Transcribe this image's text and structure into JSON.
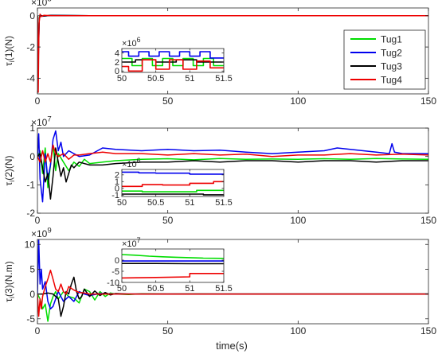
{
  "chart_data": [
    {
      "type": "line",
      "ylabel": "τi(1)(N)",
      "exponent_label": "×10",
      "exponent": "8",
      "xlim": [
        0,
        150
      ],
      "ylim": [
        -5,
        0.5
      ],
      "xticks": [
        "0",
        "50",
        "100",
        "150"
      ],
      "yticks": [
        {
          "v": 0,
          "label": "0"
        },
        {
          "v": -2,
          "label": "-2"
        },
        {
          "v": -4,
          "label": "-4"
        }
      ],
      "xlabel": "",
      "series": [
        {
          "name": "Tug1",
          "color": "#00dd00",
          "x": [
            0,
            0.3,
            0.7,
            1.2,
            2,
            5,
            20,
            150
          ],
          "y": [
            0,
            -2.2,
            -0.1,
            0.03,
            -0.02,
            0.02,
            0,
            0
          ]
        },
        {
          "name": "Tug2",
          "color": "#0000ee",
          "x": [
            0,
            0.3,
            0.7,
            1.2,
            2,
            5,
            20,
            150
          ],
          "y": [
            0,
            -3.1,
            -0.2,
            0.04,
            -0.03,
            0.02,
            0,
            0
          ]
        },
        {
          "name": "Tug3",
          "color": "#000000",
          "x": [
            0,
            0.3,
            0.7,
            1.2,
            2,
            5,
            20,
            150
          ],
          "y": [
            0,
            -2.8,
            -0.15,
            0.03,
            -0.02,
            0.02,
            0,
            0
          ]
        },
        {
          "name": "Tug4",
          "color": "#ee0000",
          "x": [
            0,
            0.3,
            0.6,
            1.0,
            1.5,
            2.5,
            5,
            20,
            150
          ],
          "y": [
            0,
            -4.9,
            -0.5,
            0.1,
            -0.05,
            0.03,
            0.01,
            0,
            0
          ]
        }
      ],
      "inset": {
        "exponent_label": "×10",
        "exponent": "6",
        "xlim": [
          50,
          51.5
        ],
        "ylim": [
          -0.3,
          5
        ],
        "xticks": [
          "50",
          "50.5",
          "51",
          "51.5"
        ],
        "yticks": [
          {
            "v": 4,
            "label": "4"
          },
          {
            "v": 2,
            "label": "2"
          },
          {
            "v": 0,
            "label": "0"
          }
        ],
        "series": [
          {
            "color": "#00dd00",
            "x": [
              50,
              50.15,
              50.15,
              50.3,
              50.3,
              50.45,
              50.45,
              50.6,
              50.6,
              50.75,
              50.75,
              50.9,
              50.9,
              51.05,
              51.05,
              51.2,
              51.2,
              51.35,
              51.35,
              51.5
            ],
            "y": [
              2.8,
              2.8,
              1.2,
              1.2,
              2.8,
              2.8,
              1.2,
              1.2,
              2.8,
              2.8,
              1.2,
              1.2,
              2.8,
              2.8,
              1.2,
              1.2,
              2.8,
              2.8,
              1.2,
              1.2
            ]
          },
          {
            "color": "#0000ee",
            "x": [
              50,
              50.1,
              50.1,
              50.25,
              50.25,
              50.4,
              50.4,
              50.55,
              50.55,
              50.7,
              50.7,
              50.85,
              50.85,
              51.0,
              51.0,
              51.15,
              51.15,
              51.3,
              51.3,
              51.5
            ],
            "y": [
              4.3,
              4.3,
              3.3,
              3.3,
              4.3,
              4.3,
              3.3,
              3.3,
              4.3,
              4.3,
              3.3,
              3.3,
              4.3,
              4.3,
              3.3,
              3.3,
              4.3,
              4.3,
              2.9,
              2.9
            ]
          },
          {
            "color": "#000000",
            "x": [
              50,
              50.2,
              50.2,
              50.5,
              50.5,
              50.8,
              50.8,
              51.1,
              51.1,
              51.5
            ],
            "y": [
              2.0,
              2.0,
              2.5,
              2.5,
              2.0,
              2.0,
              2.5,
              2.5,
              2.0,
              2.0
            ]
          },
          {
            "color": "#ee0000",
            "x": [
              50,
              50.1,
              50.1,
              50.3,
              50.3,
              50.5,
              50.5,
              50.7,
              50.7,
              50.9,
              50.9,
              51.1,
              51.1,
              51.3,
              51.3,
              51.5
            ],
            "y": [
              1.0,
              1.0,
              0.0,
              0.0,
              2.5,
              2.5,
              0.4,
              0.4,
              2.5,
              2.5,
              0.4,
              0.4,
              2.2,
              2.2,
              0.7,
              0.7
            ]
          }
        ]
      }
    },
    {
      "type": "line",
      "ylabel": "τi(2)(N)",
      "exponent_label": "×10",
      "exponent": "7",
      "xlim": [
        0,
        150
      ],
      "ylim": [
        -2,
        1
      ],
      "xticks": [
        "0",
        "50",
        "100",
        "150"
      ],
      "yticks": [
        {
          "v": 1,
          "label": "1"
        },
        {
          "v": 0,
          "label": "0"
        },
        {
          "v": -1,
          "label": "-1"
        },
        {
          "v": -2,
          "label": "-2"
        }
      ],
      "xlabel": "",
      "series": [
        {
          "name": "Tug1",
          "color": "#00dd00",
          "x": [
            0,
            1,
            2,
            3,
            4,
            5,
            6,
            7,
            8,
            10,
            12,
            14,
            16,
            18,
            20,
            25,
            30,
            40,
            50,
            60,
            70,
            80,
            90,
            100,
            110,
            120,
            130,
            140,
            150
          ],
          "y": [
            0,
            0.2,
            -0.6,
            0.3,
            -1.1,
            -0.3,
            0.4,
            -0.5,
            0.1,
            -0.2,
            -0.5,
            -0.2,
            -0.35,
            -0.1,
            -0.25,
            -0.2,
            -0.15,
            -0.1,
            -0.08,
            -0.12,
            -0.07,
            -0.1,
            -0.09,
            -0.1,
            -0.08,
            -0.1,
            -0.07,
            -0.09,
            -0.1
          ]
        },
        {
          "name": "Tug2",
          "color": "#0000ee",
          "x": [
            0,
            0.5,
            1,
            2,
            3,
            4,
            5,
            6,
            7,
            8,
            9,
            10,
            12,
            14,
            16,
            20,
            25,
            30,
            40,
            50,
            60,
            70,
            80,
            90,
            100,
            110,
            115,
            120,
            130,
            135,
            136,
            137,
            140,
            150
          ],
          "y": [
            0,
            0.8,
            -0.8,
            -1.6,
            0.1,
            -0.8,
            -0.3,
            0.6,
            0.9,
            0.2,
            0.5,
            0.0,
            0.2,
            0.1,
            0.0,
            0.05,
            0.3,
            0.25,
            0.2,
            0.25,
            0.2,
            0.22,
            0.15,
            0.1,
            0.15,
            0.2,
            0.3,
            0.25,
            0.15,
            0.1,
            0.45,
            0.15,
            0.1,
            0.1
          ]
        },
        {
          "name": "Tug3",
          "color": "#000000",
          "x": [
            0,
            1,
            2,
            3,
            4,
            5,
            6,
            7,
            8,
            9,
            10,
            11,
            12,
            13,
            14,
            16,
            20,
            25,
            30,
            40,
            50,
            60,
            70,
            80,
            90,
            100,
            110,
            120,
            130,
            140,
            150
          ],
          "y": [
            0,
            0.1,
            -0.4,
            -0.9,
            -0.6,
            -1.5,
            -0.7,
            0.3,
            -0.2,
            -0.7,
            -0.4,
            -0.9,
            -0.6,
            -0.3,
            -0.4,
            -0.2,
            -0.3,
            -0.3,
            -0.25,
            -0.2,
            -0.2,
            -0.15,
            -0.2,
            -0.15,
            -0.15,
            -0.2,
            -0.15,
            -0.15,
            -0.2,
            -0.15,
            -0.15
          ]
        },
        {
          "name": "Tug4",
          "color": "#ee0000",
          "x": [
            0,
            1,
            2,
            3,
            4,
            5,
            6,
            7,
            8,
            10,
            12,
            14,
            16,
            20,
            25,
            30,
            40,
            50,
            60,
            70,
            80,
            90,
            100,
            110,
            120,
            130,
            140,
            150
          ],
          "y": [
            0,
            -0.2,
            0.2,
            -0.2,
            0.1,
            -0.2,
            0.4,
            0.1,
            0.0,
            0.1,
            -0.1,
            0.05,
            0.05,
            0.1,
            0.15,
            0.1,
            0.1,
            0.05,
            0.1,
            0.05,
            0.08,
            0.0,
            0.05,
            0.05,
            0.1,
            0.05,
            0.08,
            0.05
          ]
        }
      ],
      "inset": {
        "exponent_label": "×10",
        "exponent": "6",
        "xlim": [
          50,
          51.5
        ],
        "ylim": [
          -1.2,
          2.8
        ],
        "xticks": [
          "50",
          "50.5",
          "51",
          "51.5"
        ],
        "yticks": [
          {
            "v": 2,
            "label": "2"
          },
          {
            "v": 1,
            "label": "1"
          },
          {
            "v": 0,
            "label": "0"
          },
          {
            "v": -1,
            "label": "-1"
          }
        ],
        "series": [
          {
            "color": "#0000ee",
            "x": [
              50,
              50.25,
              50.25,
              50.5,
              50.5,
              51.0,
              51.0,
              51.5
            ],
            "y": [
              2.4,
              2.4,
              2.3,
              2.3,
              2.25,
              2.25,
              2.1,
              2.1
            ]
          },
          {
            "color": "#ee0000",
            "x": [
              50,
              50.3,
              50.3,
              50.6,
              50.6,
              51.0,
              51.0,
              51.35,
              51.35,
              51.5
            ],
            "y": [
              0.3,
              0.3,
              0.55,
              0.55,
              0.5,
              0.5,
              0.75,
              0.75,
              1.0,
              1.0
            ]
          },
          {
            "color": "#00dd00",
            "x": [
              50,
              50.3,
              50.3,
              51.1,
              51.1,
              51.5
            ],
            "y": [
              -0.4,
              -0.4,
              -0.5,
              -0.5,
              -0.3,
              -0.3
            ]
          },
          {
            "color": "#000000",
            "x": [
              50,
              51.2,
              51.2,
              51.5
            ],
            "y": [
              -0.85,
              -0.85,
              -0.95,
              -0.95
            ]
          }
        ]
      }
    },
    {
      "type": "line",
      "ylabel": "τi(3)(N.m)",
      "exponent_label": "×10",
      "exponent": "9",
      "xlim": [
        0,
        150
      ],
      "ylim": [
        -6,
        11
      ],
      "xticks": [
        "0",
        "50",
        "100",
        "150"
      ],
      "yticks": [
        {
          "v": 10,
          "label": "10"
        },
        {
          "v": 5,
          "label": "5"
        },
        {
          "v": 0,
          "label": "0"
        },
        {
          "v": -5,
          "label": "-5"
        }
      ],
      "xlabel": "time(s)",
      "series": [
        {
          "name": "Tug1",
          "color": "#00dd00",
          "x": [
            0,
            1,
            2,
            3,
            4,
            5,
            6,
            7,
            8,
            10,
            12,
            14,
            16,
            18,
            20,
            22,
            24,
            26,
            28,
            30,
            35,
            40,
            50,
            60,
            70,
            150
          ],
          "y": [
            0,
            -1,
            -3,
            -2,
            -5.5,
            -2,
            -0.5,
            0.5,
            -1,
            0.5,
            -0.5,
            -0.8,
            -1.8,
            1,
            0.5,
            -1.2,
            0.5,
            -0.5,
            0.2,
            0,
            -0.1,
            0.05,
            0,
            0.02,
            0,
            0
          ]
        },
        {
          "name": "Tug2",
          "color": "#0000ee",
          "x": [
            0,
            0.5,
            1,
            1.5,
            2,
            3,
            4,
            5,
            6,
            7,
            8,
            10,
            12,
            14,
            16,
            18,
            20,
            24,
            30,
            40,
            150
          ],
          "y": [
            0,
            11,
            2,
            5,
            1,
            2.5,
            -1.5,
            -3,
            -2.5,
            -1,
            0.5,
            -1.5,
            -0.5,
            -1.5,
            0.5,
            0,
            -0.3,
            0.1,
            0,
            0,
            0
          ]
        },
        {
          "name": "Tug3",
          "color": "#000000",
          "x": [
            0,
            2,
            4,
            6,
            8,
            9,
            10,
            11,
            12,
            13,
            14,
            15,
            16,
            17,
            18,
            20,
            22,
            24,
            26,
            28,
            30,
            35,
            40,
            150
          ],
          "y": [
            0,
            0,
            0.2,
            0,
            -1,
            -4.5,
            -2.5,
            0.5,
            0,
            2,
            3.4,
            0.5,
            -1,
            -0.5,
            1,
            -0.5,
            0.6,
            -0.3,
            0.3,
            -0.2,
            0.1,
            0,
            0,
            0
          ]
        },
        {
          "name": "Tug4",
          "color": "#ee0000",
          "x": [
            0,
            0.5,
            1,
            1.5,
            2,
            3,
            4,
            5,
            6,
            7,
            8,
            9,
            10,
            11,
            12,
            14,
            16,
            18,
            20,
            150
          ],
          "y": [
            0,
            -4.5,
            -1,
            -3,
            -0.5,
            1.5,
            3,
            4.8,
            3,
            1,
            0.5,
            2,
            0.5,
            0,
            1.5,
            0.8,
            0.3,
            0.2,
            0,
            0
          ]
        }
      ],
      "inset": {
        "exponent_label": "×10",
        "exponent": "7",
        "xlim": [
          50,
          51.5
        ],
        "ylim": [
          -10,
          5
        ],
        "xticks": [
          "50",
          "50.5",
          "51",
          "51.5"
        ],
        "yticks": [
          {
            "v": 0,
            "label": "0"
          },
          {
            "v": -5,
            "label": "-5"
          },
          {
            "v": -10,
            "label": "-10"
          }
        ],
        "series": [
          {
            "color": "#00dd00",
            "x": [
              50,
              50.2,
              50.4,
              50.6,
              50.8,
              51.0,
              51.2,
              51.5
            ],
            "y": [
              2.5,
              2.2,
              1.8,
              1.5,
              1.3,
              1.1,
              0.9,
              0.8
            ]
          },
          {
            "color": "#0000ee",
            "x": [
              50,
              51.5
            ],
            "y": [
              -0.4,
              -0.4
            ]
          },
          {
            "color": "#000000",
            "x": [
              50,
              50.5,
              51.0,
              51.5
            ],
            "y": [
              -1.5,
              -1.5,
              -1.6,
              -1.6
            ]
          },
          {
            "color": "#ee0000",
            "x": [
              50,
              50.5,
              51.0,
              51.0,
              51.5
            ],
            "y": [
              -8.0,
              -7.8,
              -7.5,
              -6.0,
              -6.0
            ]
          }
        ]
      }
    }
  ],
  "legend": {
    "placement": "top-right",
    "entries": [
      {
        "name": "Tug1",
        "color": "#00dd00"
      },
      {
        "name": "Tug2",
        "color": "#0000ee"
      },
      {
        "name": "Tug3",
        "color": "#000000"
      },
      {
        "name": "Tug4",
        "color": "#ee0000"
      }
    ]
  }
}
